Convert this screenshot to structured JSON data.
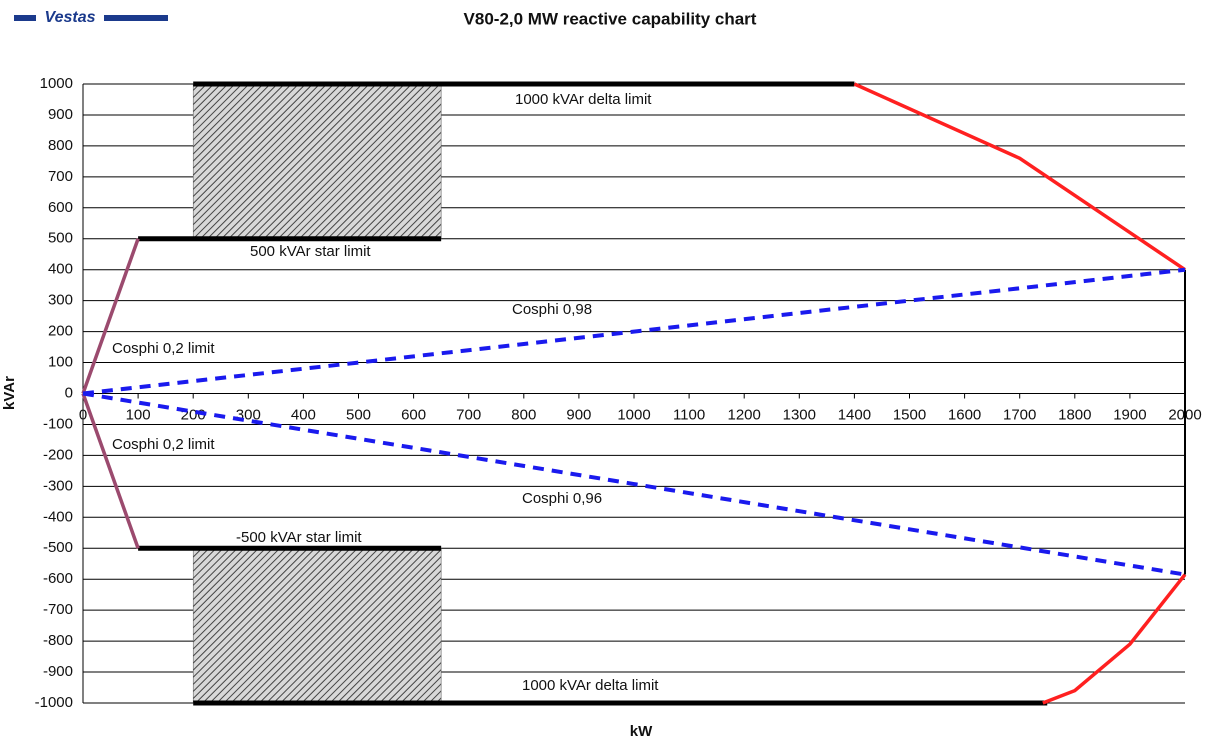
{
  "chart_data": {
    "type": "line",
    "logo": "Vestas",
    "title": "V80-2,0 MW reactive capability chart",
    "xlabel": "kW",
    "ylabel": "kVAr",
    "xlim": [
      0,
      2000
    ],
    "ylim": [
      -1000,
      1000
    ],
    "xticks": [
      0,
      100,
      200,
      300,
      400,
      500,
      600,
      700,
      800,
      900,
      1000,
      1100,
      1200,
      1300,
      1400,
      1500,
      1600,
      1700,
      1800,
      1900,
      2000
    ],
    "yticks": [
      -1000,
      -900,
      -800,
      -700,
      -600,
      -500,
      -400,
      -300,
      -200,
      -100,
      0,
      100,
      200,
      300,
      400,
      500,
      600,
      700,
      800,
      900,
      1000
    ],
    "grid": true,
    "regions": [
      {
        "x": [
          200,
          650
        ],
        "y": [
          500,
          1000
        ],
        "color": "#555555"
      },
      {
        "x": [
          200,
          650
        ],
        "y": [
          -1000,
          -500
        ],
        "color": "#555555"
      }
    ],
    "series": [
      {
        "color": "#000000",
        "style": "thick",
        "x": [
          200,
          1400
        ],
        "values": [
          1000,
          1000
        ]
      },
      {
        "color": "#000000",
        "style": "thick",
        "x": [
          200,
          1750
        ],
        "values": [
          -1000,
          -1000
        ]
      },
      {
        "color": "#000000",
        "style": "thick",
        "x": [
          100,
          650
        ],
        "values": [
          500,
          500
        ]
      },
      {
        "color": "#000000",
        "style": "thick",
        "x": [
          100,
          650
        ],
        "values": [
          -500,
          -500
        ]
      },
      {
        "color": "#9b4a6e",
        "style": "solid",
        "x": [
          0,
          100
        ],
        "values": [
          0,
          500
        ]
      },
      {
        "color": "#9b4a6e",
        "style": "solid",
        "x": [
          0,
          100
        ],
        "values": [
          0,
          -500
        ]
      },
      {
        "color": "#ff2020",
        "style": "solid",
        "x": [
          1400,
          1700,
          2000
        ],
        "values": [
          1000,
          760,
          400
        ]
      },
      {
        "color": "#ff2020",
        "style": "solid",
        "x": [
          2000,
          1900,
          1800,
          1742
        ],
        "values": [
          -585,
          -810,
          -960,
          -1000
        ]
      },
      {
        "color": "#000000",
        "style": "thin",
        "x": [
          2000,
          2000
        ],
        "values": [
          400,
          -585
        ]
      },
      {
        "color": "#1a1aee",
        "style": "dashed",
        "x": [
          0,
          2000
        ],
        "values": [
          0,
          400
        ]
      },
      {
        "color": "#1a1aee",
        "style": "dashed",
        "x": [
          0,
          2000
        ],
        "values": [
          0,
          -585
        ]
      }
    ],
    "annotations": [
      "1000 kVAr delta limit",
      "500 kVAr star limit",
      "Cosphi 0,98",
      "Cosphi 0,2 limit",
      "Cosphi 0,2 limit",
      "Cosphi 0,96",
      "-500 kVAr star limit",
      "1000 kVAr delta limit"
    ]
  }
}
